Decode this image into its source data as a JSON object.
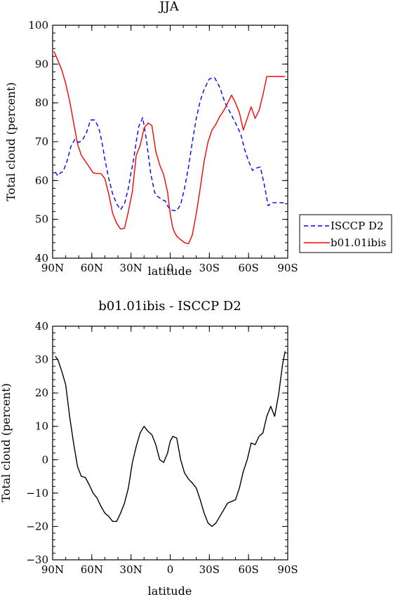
{
  "chart_data": [
    {
      "type": "line",
      "title": "JJA",
      "xlabel": "latitude",
      "ylabel": "Total cloud (percent)",
      "xlim": [
        90,
        -90
      ],
      "ylim": [
        40,
        100
      ],
      "yticks": [
        40,
        50,
        60,
        70,
        80,
        90,
        100
      ],
      "xticks": [
        90,
        60,
        30,
        0,
        -30,
        -60,
        -90
      ],
      "xtick_labels": [
        "90N",
        "60N",
        "30N",
        "0",
        "30S",
        "60S",
        "90S"
      ],
      "legend_position": "outside-right",
      "series": [
        {
          "name": "ISCCP D2",
          "color": "#0000ff",
          "dash": "dashed",
          "x": [
            88,
            86,
            84,
            82,
            79,
            76,
            73,
            70,
            67,
            64,
            61,
            58,
            56,
            54,
            52,
            50,
            47,
            44,
            41,
            38,
            35,
            32,
            30,
            28,
            26,
            24,
            21,
            18,
            15,
            12,
            10,
            8,
            6,
            4,
            2,
            0,
            -2,
            -5,
            -8,
            -11,
            -14,
            -17,
            -20,
            -23,
            -26,
            -30,
            -34,
            -38,
            -42,
            -46,
            -50,
            -54,
            -57,
            -60,
            -63,
            -66,
            -69,
            -72,
            -75,
            -78,
            -81,
            -84,
            -86,
            -88
          ],
          "values": [
            62.2,
            61.2,
            62.0,
            62.3,
            65.0,
            68.8,
            70.6,
            69.8,
            70.5,
            72.4,
            75.6,
            75.6,
            74.5,
            72.7,
            69.5,
            65.5,
            60.5,
            56.5,
            54.0,
            52.5,
            54.0,
            58.0,
            62.0,
            65.5,
            70.0,
            74.0,
            76.2,
            70.0,
            62.0,
            57.0,
            56.0,
            55.5,
            55.0,
            54.8,
            53.5,
            52.5,
            52.3,
            52.2,
            53.8,
            58.0,
            63.5,
            70.0,
            76.0,
            80.5,
            83.5,
            86.2,
            86.5,
            84.0,
            80.0,
            77.5,
            74.8,
            72.0,
            68.0,
            65.0,
            62.6,
            63.2,
            63.5,
            59.0,
            53.5,
            54.3,
            54.3,
            54.3,
            54.3,
            54.3
          ]
        },
        {
          "name": "b01.01ibis",
          "color": "#ff0000",
          "dash": "solid",
          "x": [
            89,
            86,
            83,
            80,
            77,
            74,
            71,
            68,
            65,
            62,
            59,
            56,
            53,
            50,
            47,
            44,
            41,
            38,
            35,
            32,
            29,
            26,
            23,
            20,
            17,
            14,
            11,
            8,
            5,
            2,
            0,
            -2,
            -4,
            -6,
            -8,
            -11,
            -14,
            -17,
            -20,
            -23,
            -26,
            -29,
            -32,
            -35,
            -38,
            -41,
            -44,
            -47,
            -50,
            -53,
            -56,
            -59,
            -62,
            -65,
            -68,
            -71,
            -74,
            -77,
            -80,
            -83,
            -86,
            -88
          ],
          "values": [
            93.3,
            91.0,
            88.5,
            85.0,
            80.5,
            75.0,
            69.5,
            66.5,
            65.0,
            63.5,
            62.0,
            61.8,
            61.8,
            60.5,
            56.5,
            51.5,
            49.0,
            47.5,
            47.7,
            52.0,
            57.0,
            66.5,
            69.0,
            73.5,
            74.8,
            74.2,
            67.5,
            64.0,
            61.5,
            57.0,
            51.5,
            47.8,
            46.2,
            45.3,
            44.8,
            44.0,
            43.7,
            46.0,
            51.5,
            58.0,
            65.0,
            70.0,
            73.0,
            74.5,
            76.5,
            78.0,
            80.0,
            82.0,
            80.0,
            77.5,
            73.0,
            76.0,
            79.0,
            76.0,
            78.0,
            82.0,
            86.8,
            86.8,
            86.8,
            86.8,
            86.8,
            86.8
          ]
        }
      ]
    },
    {
      "type": "line",
      "title": "b01.01ibis - ISCCP D2",
      "xlabel": "latitude",
      "ylabel": "Total cloud (percent)",
      "xlim": [
        90,
        -90
      ],
      "ylim": [
        -30,
        40
      ],
      "yticks": [
        -30,
        -20,
        -10,
        0,
        10,
        20,
        30,
        40
      ],
      "xticks": [
        90,
        60,
        30,
        0,
        -30,
        -60,
        -90
      ],
      "xtick_labels": [
        "90N",
        "60N",
        "30N",
        "0",
        "30S",
        "60S",
        "90S"
      ],
      "series": [
        {
          "name": "",
          "color": "#000000",
          "dash": "solid",
          "x": [
            88,
            86,
            83,
            80,
            77,
            74,
            71,
            68,
            65,
            62,
            59,
            56,
            53,
            50,
            47,
            44,
            41,
            38,
            35,
            32,
            29,
            26,
            23,
            20,
            17,
            14,
            11,
            8,
            5,
            2,
            0,
            -2,
            -5,
            -8,
            -11,
            -14,
            -17,
            -20,
            -23,
            -26,
            -29,
            -32,
            -35,
            -38,
            -41,
            -44,
            -47,
            -50,
            -53,
            -56,
            -59,
            -62,
            -65,
            -68,
            -71,
            -74,
            -77,
            -80,
            -83,
            -86,
            -88
          ],
          "values": [
            31.0,
            30.0,
            26.5,
            22.5,
            13.0,
            5.0,
            -2.0,
            -5.0,
            -5.3,
            -7.5,
            -10.0,
            -11.5,
            -14.0,
            -16.0,
            -17.0,
            -18.5,
            -18.5,
            -16.0,
            -13.0,
            -8.5,
            -1.0,
            4.0,
            8.0,
            10.0,
            8.5,
            7.5,
            4.5,
            0.0,
            -0.8,
            2.0,
            5.5,
            7.0,
            6.5,
            0.0,
            -4.0,
            -5.8,
            -7.0,
            -8.5,
            -12.0,
            -16.0,
            -19.0,
            -20.0,
            -19.0,
            -17.0,
            -15.0,
            -13.0,
            -12.5,
            -12.0,
            -8.5,
            -3.5,
            0.0,
            5.0,
            4.5,
            7.0,
            8.0,
            13.0,
            16.0,
            13.0,
            19.5,
            28.5,
            32.5
          ]
        }
      ]
    }
  ],
  "legend": {
    "items": [
      {
        "label": "ISCCP D2",
        "color": "#0000ff",
        "dash": "dashed"
      },
      {
        "label": "b01.01ibis",
        "color": "#ff0000",
        "dash": "solid"
      }
    ]
  }
}
